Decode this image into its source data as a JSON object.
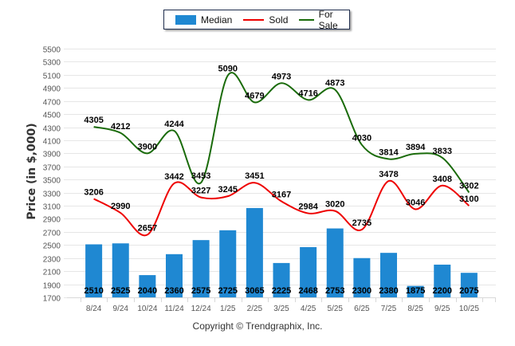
{
  "legend": {
    "items": [
      {
        "label": "Median",
        "type": "bar",
        "color": "#1f88d2"
      },
      {
        "label": "Sold",
        "type": "line",
        "color": "#ee0000"
      },
      {
        "label": "For Sale",
        "type": "line",
        "color": "#1a6b0a"
      }
    ]
  },
  "copyright": "Copyright © Trendgraphix, Inc.",
  "chart_data": {
    "type": "bar",
    "title": "",
    "xlabel": "",
    "ylabel": "Price (in $,000)",
    "ylim": [
      1700,
      5500
    ],
    "ytick_step": 200,
    "grid": true,
    "legend_position": "top-center",
    "categories": [
      "8/24",
      "9/24",
      "10/24",
      "11/24",
      "12/24",
      "1/25",
      "2/25",
      "3/25",
      "4/25",
      "5/25",
      "6/25",
      "7/25",
      "8/25",
      "9/25",
      "10/25"
    ],
    "series": [
      {
        "name": "Median",
        "type": "bar",
        "color": "#1f88d2",
        "values": [
          2510,
          2525,
          2040,
          2360,
          2575,
          2725,
          3065,
          2225,
          2468,
          2753,
          2300,
          2380,
          1875,
          2200,
          2075
        ]
      },
      {
        "name": "Sold",
        "type": "line",
        "color": "#ee0000",
        "values": [
          3206,
          2990,
          2657,
          3442,
          3227,
          3245,
          3451,
          3167,
          2984,
          3020,
          2735,
          3478,
          3046,
          3408,
          3100
        ]
      },
      {
        "name": "For Sale",
        "type": "line",
        "color": "#1a6b0a",
        "values": [
          4305,
          4212,
          3900,
          4244,
          3453,
          5090,
          4679,
          4973,
          4716,
          4873,
          4030,
          3814,
          3894,
          3833,
          3302
        ]
      }
    ]
  }
}
